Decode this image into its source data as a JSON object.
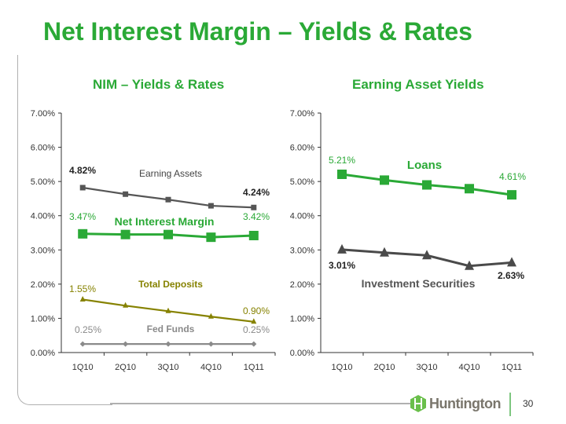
{
  "title": "Net Interest Margin – Yields & Rates",
  "page_number": "30",
  "logo_text": "Huntington",
  "chart_data": [
    {
      "type": "line",
      "title": "NIM – Yields & Rates",
      "categories": [
        "1Q10",
        "2Q10",
        "3Q10",
        "4Q10",
        "1Q11"
      ],
      "yticks": [
        "0.00%",
        "1.00%",
        "2.00%",
        "3.00%",
        "4.00%",
        "5.00%",
        "6.00%",
        "7.00%"
      ],
      "ylim": [
        0,
        7
      ],
      "series": [
        {
          "name": "Earning Assets",
          "values": [
            4.82,
            4.63,
            4.47,
            4.29,
            4.24
          ],
          "color": "#555555",
          "marker": "square",
          "labels": [
            "4.82%",
            "4.24%"
          ],
          "label_color": "#222222"
        },
        {
          "name": "Net Interest Margin",
          "values": [
            3.47,
            3.45,
            3.45,
            3.37,
            3.42
          ],
          "color": "#2aa936",
          "marker": "bigsquare",
          "labels": [
            "3.47%",
            "3.42%"
          ],
          "label_color": "#2aa936"
        },
        {
          "name": "Total Deposits",
          "values": [
            1.55,
            1.37,
            1.21,
            1.05,
            0.9
          ],
          "color": "#868200",
          "marker": "triangle",
          "labels": [
            "1.55%",
            "0.90%"
          ],
          "label_color": "#868200"
        },
        {
          "name": "Fed Funds",
          "values": [
            0.25,
            0.25,
            0.25,
            0.25,
            0.25
          ],
          "color": "#8a8a8a",
          "marker": "diamond",
          "labels": [
            "0.25%",
            "0.25%"
          ],
          "label_color": "#8a8a8a"
        }
      ]
    },
    {
      "type": "line",
      "title": "Earning Asset Yields",
      "categories": [
        "1Q10",
        "2Q10",
        "3Q10",
        "4Q10",
        "1Q11"
      ],
      "yticks": [
        "0.00%",
        "1.00%",
        "2.00%",
        "3.00%",
        "4.00%",
        "5.00%",
        "6.00%",
        "7.00%"
      ],
      "ylim": [
        0,
        7
      ],
      "series": [
        {
          "name": "Loans",
          "values": [
            5.21,
            5.04,
            4.9,
            4.79,
            4.61
          ],
          "color": "#2aa936",
          "marker": "bigsquare",
          "labels": [
            "5.21%",
            "4.61%"
          ],
          "label_color": "#2aa936"
        },
        {
          "name": "Investment Securities",
          "values": [
            3.01,
            2.92,
            2.84,
            2.53,
            2.63
          ],
          "color": "#4a4a4a",
          "marker": "bigtriangle",
          "labels": [
            "3.01%",
            "2.63%"
          ],
          "label_color": "#222222"
        }
      ]
    }
  ]
}
